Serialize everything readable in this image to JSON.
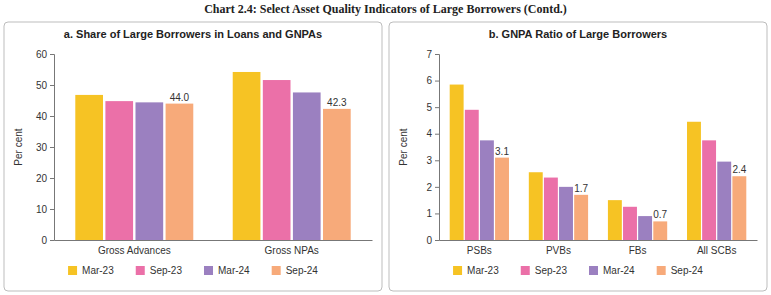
{
  "title": "Chart 2.4: Select Asset Quality Indicators of Large Borrowers (Contd.)",
  "chart_data": [
    {
      "type": "bar",
      "title": "a. Share of Large Borrowers in Loans and GNPAs",
      "y_label": "Per cent",
      "categories": [
        "Gross Advances",
        "Gross NPAs"
      ],
      "series": [
        {
          "name": "Mar-23",
          "color": "#f6c324",
          "values": [
            46.8,
            54.2
          ]
        },
        {
          "name": "Sep-23",
          "color": "#eb70a8",
          "values": [
            44.8,
            51.6
          ]
        },
        {
          "name": "Mar-24",
          "color": "#9b80c0",
          "values": [
            44.4,
            47.6
          ]
        },
        {
          "name": "Sep-24",
          "color": "#f7aa7a",
          "values": [
            44.0,
            42.3
          ],
          "data_labels": true,
          "value_labels": [
            "44.0",
            "42.3"
          ]
        }
      ],
      "ylim": [
        0,
        60
      ],
      "yticks": [
        0,
        10,
        20,
        30,
        40,
        50,
        60
      ],
      "grid": false,
      "legend": "bottom"
    },
    {
      "type": "bar",
      "title": "b. GNPA Ratio of Large Borrowers",
      "y_label": "Per cent",
      "categories": [
        "PSBs",
        "PVBs",
        "FBs",
        "All SCBs"
      ],
      "series": [
        {
          "name": "Mar-23",
          "color": "#f6c324",
          "values": [
            5.85,
            2.55,
            1.5,
            4.45
          ]
        },
        {
          "name": "Sep-23",
          "color": "#eb70a8",
          "values": [
            4.9,
            2.35,
            1.25,
            3.75
          ]
        },
        {
          "name": "Mar-24",
          "color": "#9b80c0",
          "values": [
            3.75,
            2.0,
            0.9,
            2.95
          ]
        },
        {
          "name": "Sep-24",
          "color": "#f7aa7a",
          "values": [
            3.1,
            1.7,
            0.7,
            2.4
          ],
          "data_labels": true
        }
      ],
      "ylim": [
        0,
        7
      ],
      "yticks": [
        0,
        1,
        2,
        3,
        4,
        5,
        6,
        7
      ],
      "grid": false,
      "legend": "bottom"
    }
  ]
}
